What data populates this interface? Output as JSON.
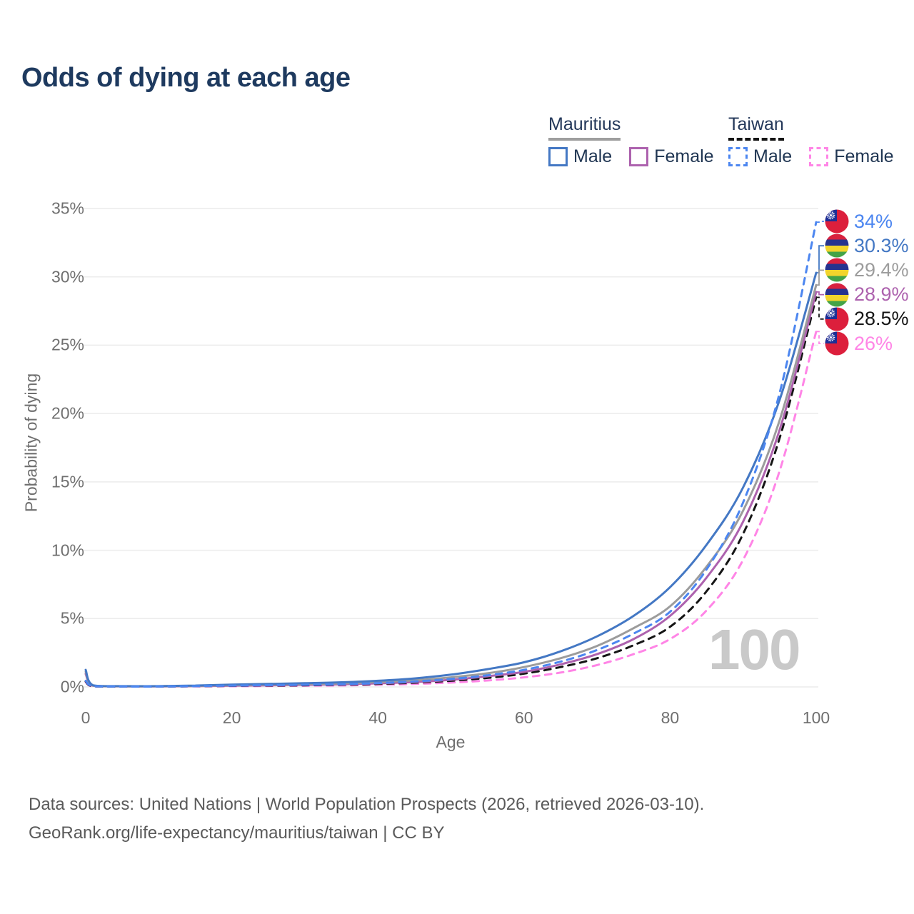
{
  "title": "Odds of dying at each age",
  "watermark": "100",
  "legend": {
    "groups": [
      {
        "name": "Mauritius",
        "line_style": "solid",
        "underline_color": "#9e9e9e",
        "items": [
          {
            "label": "Male",
            "color": "#4478c4"
          },
          {
            "label": "Female",
            "color": "#ad62ae"
          }
        ]
      },
      {
        "name": "Taiwan",
        "line_style": "dashed",
        "underline_color": "#141414",
        "items": [
          {
            "label": "Male",
            "color": "#4c86f0"
          },
          {
            "label": "Female",
            "color": "#ff85e6"
          }
        ]
      }
    ]
  },
  "footer": {
    "line1": "Data sources: United Nations | World Population Prospects (2026, retrieved 2026-03-10).",
    "line2": "GeoRank.org/life-expectancy/mauritius/taiwan | CC BY"
  },
  "chart_data": {
    "type": "line",
    "title": "Odds of dying at each age",
    "xlabel": "Age",
    "ylabel": "Probability of dying",
    "xlim": [
      0,
      100
    ],
    "ylim": [
      0,
      35
    ],
    "x_ticks": [
      0,
      20,
      40,
      60,
      80,
      100
    ],
    "y_ticks": [
      "0%",
      "5%",
      "10%",
      "15%",
      "20%",
      "25%",
      "30%",
      "35%"
    ],
    "grid": "horizontal-only",
    "legend_position": "top-right",
    "x": [
      0,
      1,
      5,
      10,
      15,
      20,
      25,
      30,
      35,
      40,
      45,
      50,
      55,
      60,
      65,
      70,
      75,
      80,
      85,
      90,
      95,
      100
    ],
    "series": [
      {
        "name": "Taiwan Male",
        "country": "taiwan",
        "sex": "male",
        "color": "#4c86f0",
        "dashed": true,
        "end_label": "34%",
        "end_value": 34,
        "values": [
          0.45,
          0.05,
          0.03,
          0.03,
          0.06,
          0.1,
          0.13,
          0.16,
          0.2,
          0.28,
          0.4,
          0.58,
          0.85,
          1.25,
          1.85,
          2.7,
          3.9,
          5.5,
          8.6,
          13.5,
          21.5,
          34
        ]
      },
      {
        "name": "Mauritius Male",
        "country": "mauritius",
        "sex": "male",
        "color": "#4478c4",
        "dashed": false,
        "end_label": "30.3%",
        "end_value": 30.3,
        "values": [
          1.25,
          0.12,
          0.06,
          0.06,
          0.1,
          0.17,
          0.22,
          0.27,
          0.34,
          0.45,
          0.62,
          0.9,
          1.3,
          1.8,
          2.6,
          3.7,
          5.2,
          7.3,
          10.4,
          14.6,
          21.0,
          30.3
        ]
      },
      {
        "name": "Mauritius Both sexes",
        "country": "mauritius",
        "sex": "both",
        "color": "#9c9c9c",
        "dashed": false,
        "end_label": "29.4%",
        "end_value": 29.4,
        "values": [
          1.1,
          0.1,
          0.05,
          0.05,
          0.08,
          0.13,
          0.17,
          0.21,
          0.26,
          0.35,
          0.48,
          0.7,
          1.0,
          1.45,
          2.1,
          3.0,
          4.3,
          5.9,
          8.8,
          12.9,
          19.5,
          29.4
        ]
      },
      {
        "name": "Mauritius Female",
        "country": "mauritius",
        "sex": "female",
        "color": "#ad62ae",
        "dashed": false,
        "end_label": "28.9%",
        "end_value": 28.9,
        "values": [
          0.95,
          0.09,
          0.04,
          0.04,
          0.06,
          0.09,
          0.12,
          0.15,
          0.19,
          0.26,
          0.36,
          0.52,
          0.78,
          1.1,
          1.65,
          2.4,
          3.5,
          5.2,
          8.0,
          12.1,
          18.8,
          28.9
        ]
      },
      {
        "name": "Taiwan Both sexes",
        "country": "taiwan",
        "sex": "both",
        "color": "#151515",
        "dashed": true,
        "end_label": "28.5%",
        "end_value": 28.5,
        "values": [
          0.4,
          0.04,
          0.02,
          0.03,
          0.05,
          0.08,
          0.1,
          0.12,
          0.16,
          0.22,
          0.31,
          0.45,
          0.66,
          0.97,
          1.45,
          2.1,
          3.05,
          4.4,
          7.0,
          11.2,
          18.2,
          28.5
        ]
      },
      {
        "name": "Taiwan Female",
        "country": "taiwan",
        "sex": "female",
        "color": "#ff85e6",
        "dashed": true,
        "end_label": "26%",
        "end_value": 26,
        "values": [
          0.35,
          0.03,
          0.02,
          0.02,
          0.04,
          0.05,
          0.07,
          0.09,
          0.11,
          0.16,
          0.22,
          0.32,
          0.47,
          0.7,
          1.05,
          1.6,
          2.4,
          3.5,
          5.6,
          9.3,
          15.8,
          26
        ]
      }
    ]
  }
}
